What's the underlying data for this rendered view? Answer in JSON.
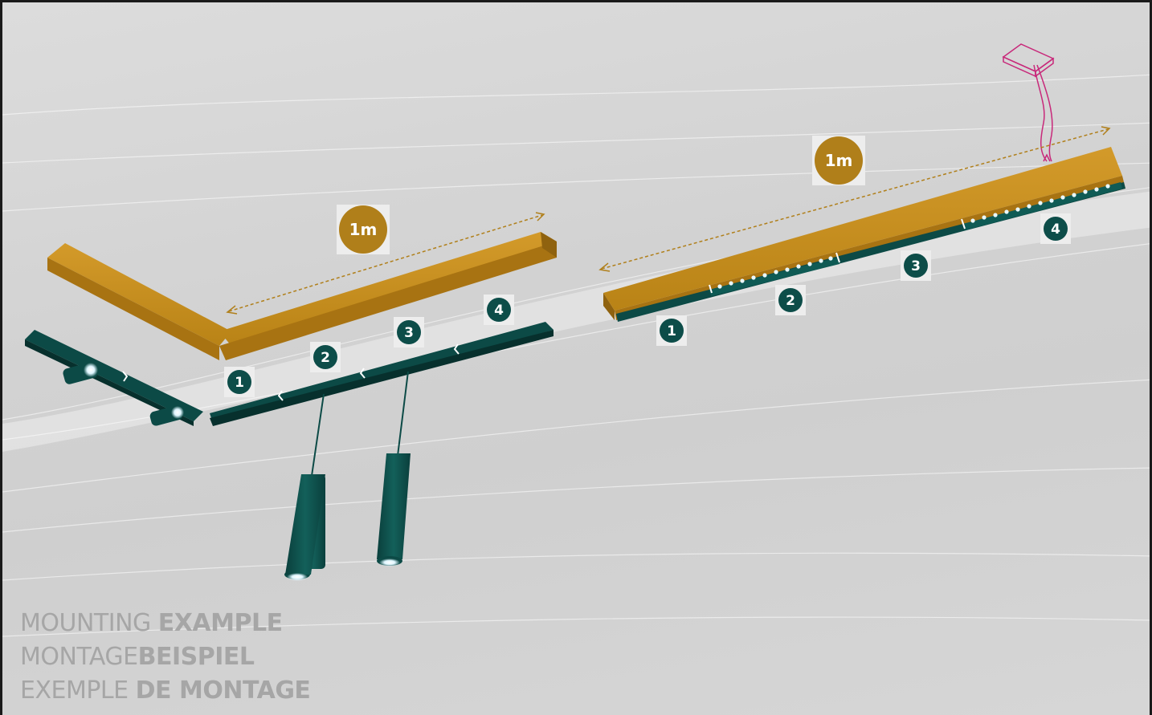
{
  "title": {
    "lines": [
      {
        "thin": "MOUNTING ",
        "bold": "EXAMPLE"
      },
      {
        "thin": "MONTAGE",
        "bold": "BEISPIEL"
      },
      {
        "thin": "EXEMPLE ",
        "bold": "DE MONTAGE"
      }
    ]
  },
  "left_assembly": {
    "length_label": "1m",
    "segment_numbers": [
      "1",
      "2",
      "3",
      "4"
    ]
  },
  "right_assembly": {
    "length_label": "1m",
    "segment_numbers": [
      "1",
      "2",
      "3",
      "4"
    ]
  },
  "colors": {
    "profile_gold": "#c08a1e",
    "module_teal": "#0c4a46",
    "badge_teal": "#0d4d49",
    "length_badge": "#b07f1a",
    "dimension_line": "#b07f1a",
    "suspension_magenta": "#c8287a",
    "text_grey": "#a6a6a6"
  }
}
